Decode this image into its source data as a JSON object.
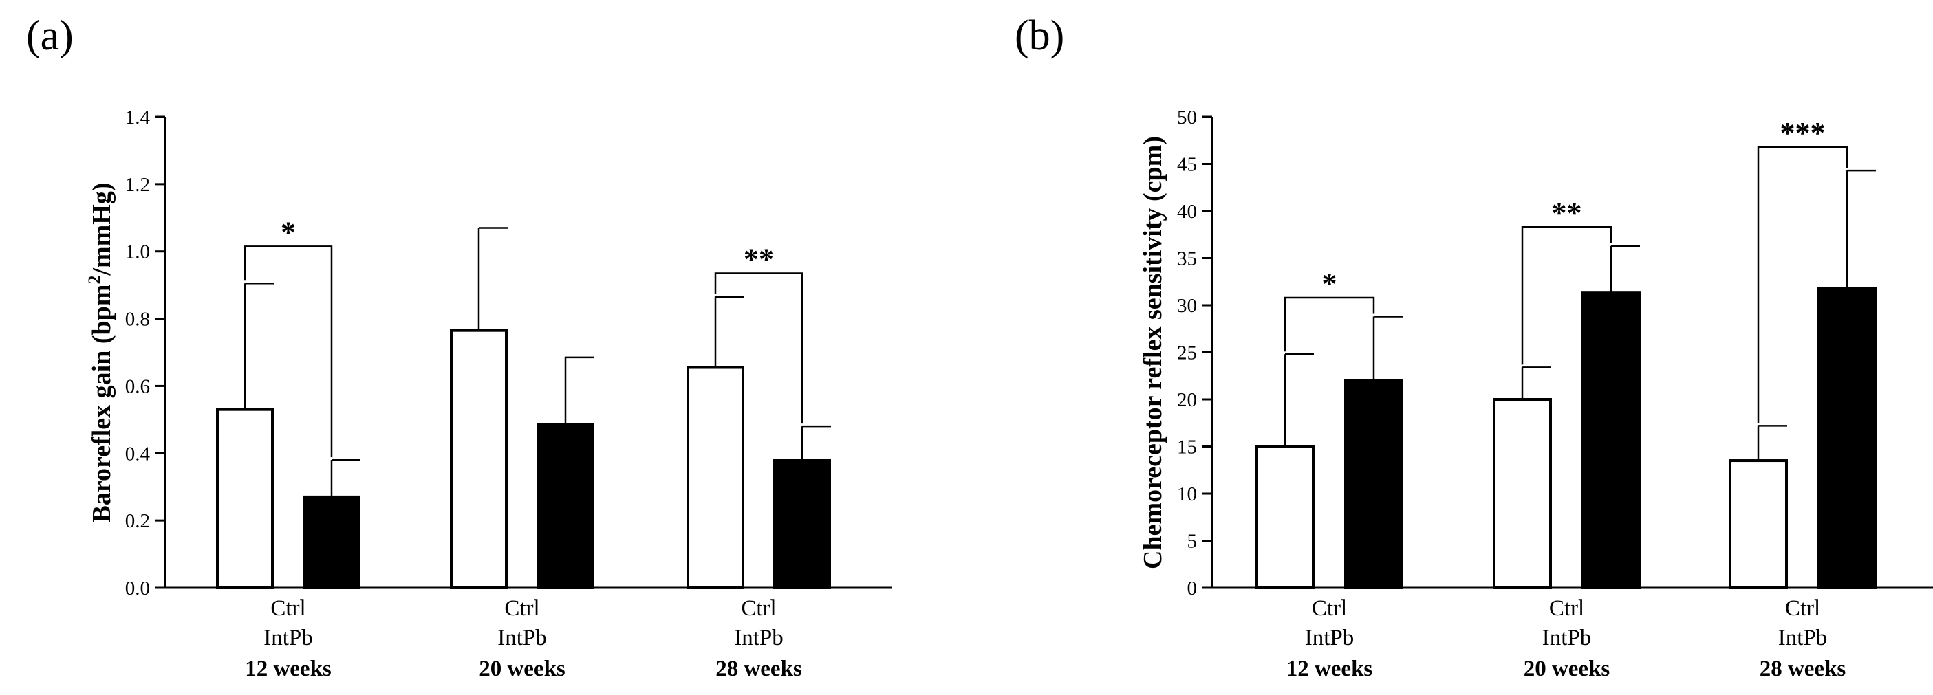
{
  "colors": {
    "ctrl_fill": "#ffffff",
    "intpb_fill": "#000000",
    "stroke": "#000000"
  },
  "chart_data": [
    {
      "type": "bar",
      "panel_label": "(a)",
      "title": "",
      "xlabel": "",
      "ylabel": "Baroreflex gain (bpm²/mmHg)",
      "ylabel_main": "Baroreflex gain (bpm",
      "ylabel_sup": "2",
      "ylabel_tail": "/mmHg)",
      "ylim": [
        0,
        1.4
      ],
      "yticks": [
        "0.0",
        "0.2",
        "0.4",
        "0.6",
        "0.8",
        "1.0",
        "1.2",
        "1.4"
      ],
      "categories": [
        "12 weeks",
        "20 weeks",
        "28 weeks"
      ],
      "series": [
        {
          "name": "Ctrl",
          "values": [
            0.53,
            0.765,
            0.655
          ],
          "errors": [
            0.375,
            0.305,
            0.21
          ]
        },
        {
          "name": "IntPb",
          "values": [
            0.27,
            0.485,
            0.38
          ],
          "errors": [
            0.11,
            0.2,
            0.1
          ]
        }
      ],
      "significance": [
        "*",
        "",
        "**"
      ]
    },
    {
      "type": "bar",
      "panel_label": "(b)",
      "title": "",
      "xlabel": "",
      "ylabel": "Chemoreceptor reflex sensitivity (cpm)",
      "ylim": [
        0,
        50
      ],
      "yticks": [
        "0",
        "5",
        "10",
        "15",
        "20",
        "25",
        "30",
        "35",
        "40",
        "45",
        "50"
      ],
      "categories": [
        "12 weeks",
        "20 weeks",
        "28 weeks"
      ],
      "series": [
        {
          "name": "Ctrl",
          "values": [
            15.0,
            20.0,
            13.5
          ],
          "errors": [
            9.8,
            3.4,
            3.7
          ]
        },
        {
          "name": "IntPb",
          "values": [
            22.0,
            31.3,
            31.8
          ],
          "errors": [
            6.8,
            5.0,
            12.5
          ]
        }
      ],
      "significance": [
        "*",
        "**",
        "***"
      ]
    }
  ]
}
